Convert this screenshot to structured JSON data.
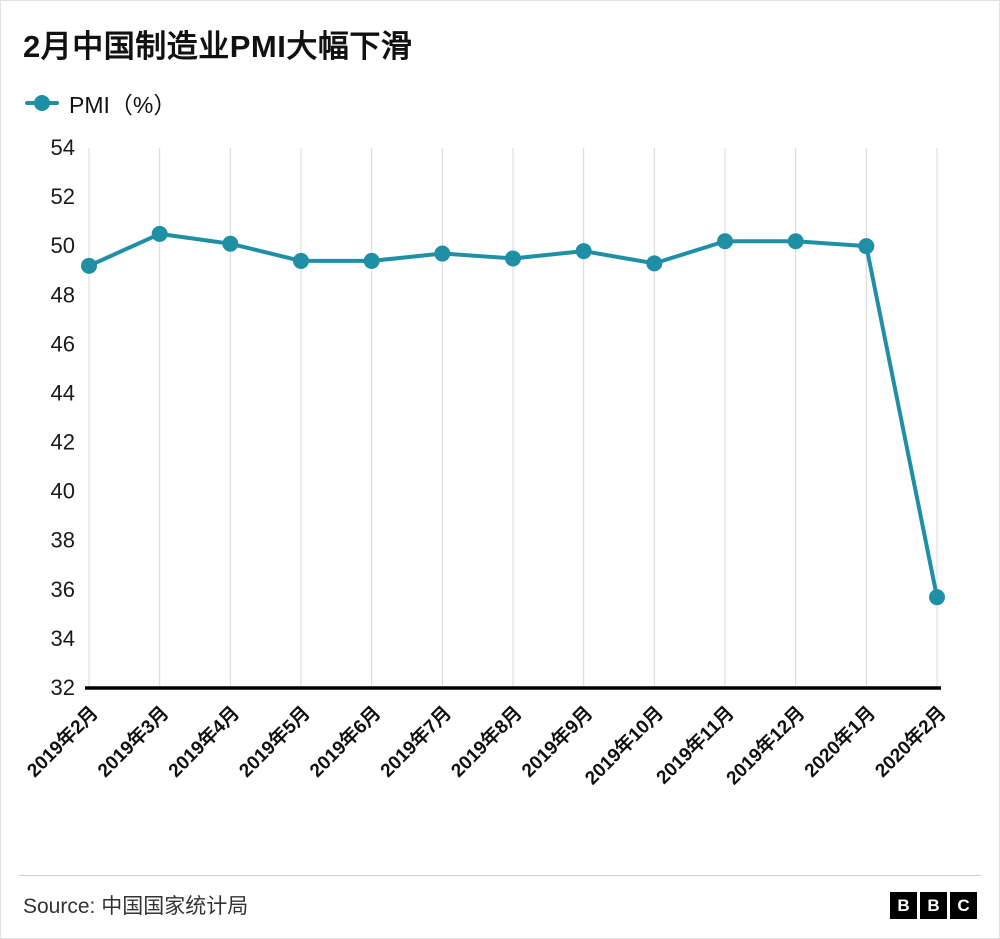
{
  "title": "2月中国制造业PMI大幅下滑",
  "legend": {
    "label": "PMI（%）"
  },
  "footer": {
    "source": "Source: 中国国家统计局",
    "logo_letters": [
      "B",
      "B",
      "C"
    ]
  },
  "chart_data": {
    "type": "line",
    "title": "2月中国制造业PMI大幅下滑",
    "series_name": "PMI（%）",
    "categories": [
      "2019年2月",
      "2019年3月",
      "2019年4月",
      "2019年5月",
      "2019年6月",
      "2019年7月",
      "2019年8月",
      "2019年9月",
      "2019年10月",
      "2019年11月",
      "2019年12月",
      "2020年1月",
      "2020年2月"
    ],
    "values": [
      49.2,
      50.5,
      50.1,
      49.4,
      49.4,
      49.7,
      49.5,
      49.8,
      49.3,
      50.2,
      50.2,
      50.0,
      35.7
    ],
    "xlabel": "",
    "ylabel": "",
    "ylim": [
      32,
      54
    ],
    "ytick_step": 2,
    "grid": "vertical",
    "legend_position": "top-left",
    "accent_color": "#1f8fa6",
    "gridline_color": "#d8d8d8",
    "axis_color": "#000000"
  }
}
